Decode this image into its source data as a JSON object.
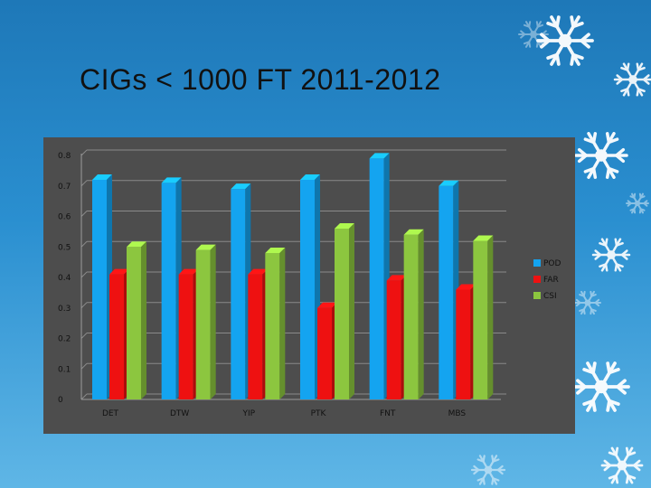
{
  "slide": {
    "title": "CIGs < 1000 FT 2011-2012"
  },
  "colors": {
    "POD": "#14a4f0",
    "FAR": "#ee1111",
    "CSI": "#8cc63f",
    "panel": "#4d4d4d",
    "grid": "#8a8a8a"
  },
  "chart_data": {
    "type": "bar",
    "title": "",
    "xlabel": "",
    "ylabel": "",
    "categories": [
      "DET",
      "DTW",
      "YIP",
      "PTK",
      "FNT",
      "MBS"
    ],
    "ylim": [
      0,
      0.8
    ],
    "yticks": [
      "0",
      "0.1",
      "0.2",
      "0.3",
      "0.4",
      "0.5",
      "0.6",
      "0.7",
      "0.8"
    ],
    "grid": true,
    "legend_position": "right",
    "series": [
      {
        "name": "POD",
        "values": [
          0.72,
          0.71,
          0.69,
          0.72,
          0.79,
          0.7
        ]
      },
      {
        "name": "FAR",
        "values": [
          0.41,
          0.41,
          0.41,
          0.3,
          0.39,
          0.36
        ]
      },
      {
        "name": "CSI",
        "values": [
          0.5,
          0.49,
          0.48,
          0.56,
          0.54,
          0.52
        ]
      }
    ]
  }
}
